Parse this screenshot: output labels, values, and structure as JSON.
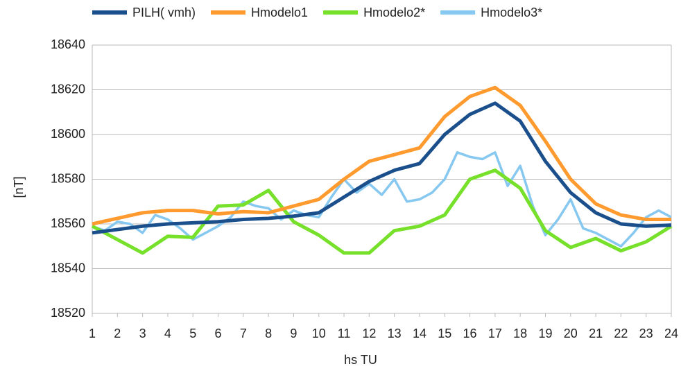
{
  "chart_data": {
    "type": "line",
    "x_label": "hs TU",
    "y_label": "[nT]",
    "xlim": [
      1,
      24
    ],
    "xticks": [
      1,
      2,
      3,
      4,
      5,
      6,
      7,
      8,
      9,
      10,
      11,
      12,
      13,
      14,
      15,
      16,
      17,
      18,
      19,
      20,
      21,
      22,
      23,
      24
    ],
    "ylim": [
      18520,
      18640
    ],
    "yticks": [
      18520,
      18540,
      18560,
      18580,
      18600,
      18620,
      18640
    ],
    "grid": true,
    "legend": "top",
    "series": [
      {
        "name": "PILH( vmh)",
        "color": "#1a4f8b",
        "x": [
          1,
          2,
          3,
          4,
          5,
          6,
          7,
          8,
          9,
          10,
          11,
          12,
          13,
          14,
          15,
          16,
          17,
          18,
          19,
          20,
          21,
          22,
          23,
          24
        ],
        "values": [
          18556,
          18557.5,
          18559,
          18560,
          18560.5,
          18561,
          18562,
          18562.5,
          18563.5,
          18565,
          18572,
          18579,
          18584,
          18587,
          18600,
          18609,
          18614,
          18606,
          18588,
          18574,
          18565,
          18560,
          18559,
          18559.5
        ]
      },
      {
        "name": "Hmodelo1",
        "color": "#ff9a2e",
        "x": [
          1,
          2,
          3,
          4,
          5,
          6,
          7,
          8,
          9,
          10,
          11,
          12,
          13,
          14,
          15,
          16,
          17,
          18,
          19,
          20,
          21,
          22,
          23,
          24
        ],
        "values": [
          18560,
          18562.5,
          18565,
          18566,
          18566,
          18564.5,
          18565.5,
          18565,
          18568,
          18571,
          18580,
          18588,
          18591,
          18594,
          18608,
          18617,
          18621,
          18613,
          18597,
          18580,
          18569,
          18564,
          18562,
          18562
        ]
      },
      {
        "name": "Hmodelo2*",
        "color": "#77e02a",
        "x": [
          1,
          2,
          3,
          4,
          5,
          6,
          7,
          8,
          9,
          10,
          11,
          12,
          13,
          14,
          15,
          16,
          17,
          18,
          19,
          20,
          21,
          22,
          23,
          24
        ],
        "values": [
          18559,
          18553,
          18547,
          18554.5,
          18554,
          18568,
          18568.5,
          18575,
          18561,
          18555,
          18547,
          18547,
          18557,
          18559,
          18564,
          18580,
          18584,
          18576,
          18557,
          18549.5,
          18553.5,
          18548,
          18552,
          18559
        ]
      },
      {
        "name": "Hmodelo3*",
        "color": "#86c8f0",
        "x": [
          1,
          1.5,
          2,
          2.5,
          3,
          3.5,
          4,
          4.5,
          5,
          5.5,
          6,
          6.5,
          7,
          7.5,
          8,
          8.5,
          9,
          9.5,
          10,
          10.5,
          11,
          11.5,
          12,
          12.5,
          13,
          13.5,
          14,
          14.5,
          15,
          15.5,
          16,
          16.5,
          17,
          17.5,
          18,
          18.5,
          19,
          19.5,
          20,
          20.5,
          21,
          21.5,
          22,
          22.5,
          23,
          23.5,
          24
        ],
        "values": [
          18559,
          18557,
          18561,
          18560,
          18556,
          18564,
          18562,
          18558,
          18553,
          18556,
          18559,
          18563,
          18570,
          18568,
          18567,
          18562,
          18566,
          18564,
          18563,
          18572,
          18580,
          18574,
          18578,
          18573,
          18580,
          18570,
          18571,
          18574,
          18580,
          18592,
          18590,
          18589,
          18592,
          18577,
          18586,
          18568,
          18555,
          18562,
          18571,
          18558,
          18556,
          18553,
          18550,
          18556,
          18563,
          18566,
          18563
        ]
      }
    ]
  }
}
